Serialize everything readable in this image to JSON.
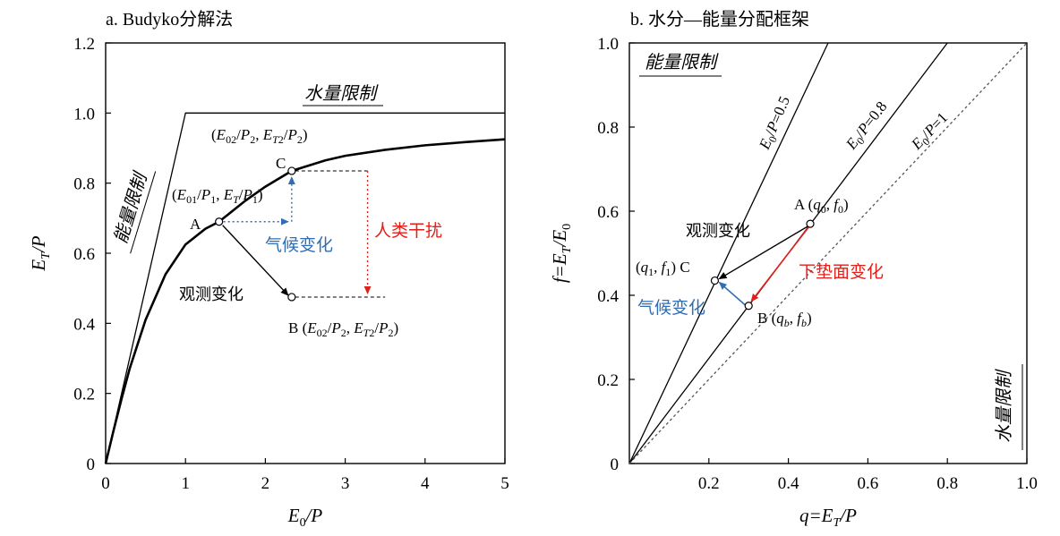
{
  "chart_data": [
    {
      "type": "line",
      "title": "a. Budyko分解法",
      "xlabel": "E0/P",
      "ylabel": "ET/P",
      "xlim": [
        0,
        5
      ],
      "ylim": [
        0,
        1.2
      ],
      "xticks": [
        "0",
        "1",
        "2",
        "3",
        "4",
        "5"
      ],
      "yticks": [
        "0",
        "0.2",
        "0.4",
        "0.6",
        "0.8",
        "1.0",
        "1.2"
      ],
      "grid": false,
      "series": [
        {
          "x": [
            0,
            0.1,
            0.2,
            0.3,
            0.5,
            0.75,
            1.0,
            1.25,
            1.42,
            1.75,
            2.0,
            2.33,
            2.75,
            3.0,
            3.5,
            4.0,
            4.5,
            5.0
          ],
          "values": [
            0,
            0.095,
            0.185,
            0.27,
            0.41,
            0.54,
            0.625,
            0.67,
            0.69,
            0.75,
            0.79,
            0.835,
            0.865,
            0.878,
            0.895,
            0.908,
            0.917,
            0.925
          ]
        },
        {
          "x": [
            0,
            1,
            5
          ],
          "values": [
            0,
            1,
            1
          ]
        }
      ],
      "points": [
        {
          "name": "A",
          "x": 1.42,
          "y": 0.69,
          "coord": "(E01/P1, ET/P1)"
        },
        {
          "name": "B",
          "x": 2.33,
          "y": 0.475,
          "coord": "B (E02/P2, ET2/P2)"
        },
        {
          "name": "C",
          "x": 2.33,
          "y": 0.835,
          "coord": "(E02/P2, ET2/P2)"
        }
      ],
      "annotations": {
        "water_limit": "水量限制",
        "energy_limit": "能量限制",
        "climate_change": "气候变化",
        "human_impact": "人类干扰",
        "observed_change": "观测变化"
      },
      "colors": {
        "climate": "#2f6db5",
        "human": "#e0201b",
        "main": "#000000"
      }
    },
    {
      "type": "line",
      "title": "b. 水分—能量分配框架",
      "xlabel": "q=ET/P",
      "ylabel": "f=ET/E0",
      "xlim": [
        0,
        1.0
      ],
      "ylim": [
        0,
        1.0
      ],
      "xticks": [
        "0.2",
        "0.4",
        "0.6",
        "0.8",
        "1.0"
      ],
      "yticks": [
        "0",
        "0.2",
        "0.4",
        "0.6",
        "0.8",
        "1.0"
      ],
      "grid": false,
      "series": [
        {
          "name": "E0/P=0.5",
          "x": [
            0,
            0.5
          ],
          "values": [
            0,
            1.0
          ]
        },
        {
          "name": "E0/P=0.8",
          "x": [
            0,
            0.8
          ],
          "values": [
            0,
            1.0
          ]
        },
        {
          "name": "E0/P=1",
          "x": [
            0,
            1.0
          ],
          "values": [
            0,
            1.0
          ],
          "dashed": true
        }
      ],
      "points": [
        {
          "name": "A",
          "x": 0.455,
          "y": 0.57,
          "coord": "A (q0, f0)"
        },
        {
          "name": "B",
          "x": 0.3,
          "y": 0.375,
          "coord": "B (qb, fb)"
        },
        {
          "name": "C",
          "x": 0.215,
          "y": 0.435,
          "coord": "(q1, f1) C"
        }
      ],
      "annotations": {
        "energy_limit": "能量限制",
        "water_limit": "水量限制",
        "observed_change": "观测变化",
        "underlying_change": "下垫面变化",
        "climate_change": "气候变化"
      },
      "colors": {
        "climate": "#2f6db5",
        "underlying": "#e0201b",
        "main": "#000000"
      }
    }
  ]
}
